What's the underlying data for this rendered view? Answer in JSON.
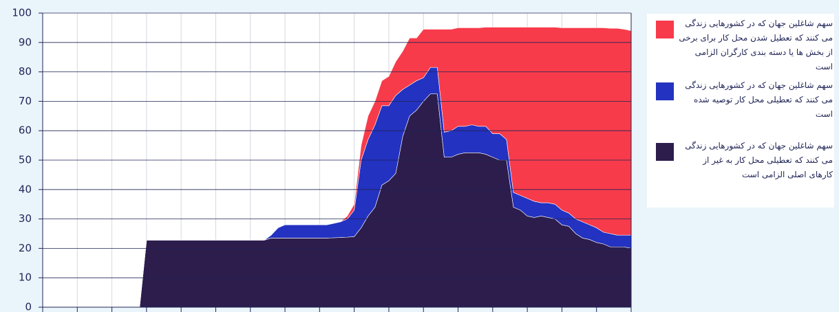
{
  "chart_data": {
    "type": "stacked-area",
    "categories": [
      null,
      null,
      null,
      null,
      null,
      null,
      null,
      null,
      null,
      null,
      null,
      null,
      null,
      null,
      null,
      null,
      null,
      null,
      null,
      null,
      null,
      null,
      null,
      null,
      null,
      null,
      null,
      null,
      null,
      null,
      null,
      null,
      null,
      null,
      null,
      null,
      null,
      null,
      null,
      null,
      null,
      null,
      null,
      null,
      null,
      null,
      null,
      null,
      null,
      null,
      null,
      null,
      null,
      null,
      null,
      null,
      null,
      null,
      null,
      null,
      null,
      null,
      null,
      null,
      null,
      null,
      null,
      null,
      null,
      null,
      null,
      null,
      null,
      null,
      null,
      null,
      null,
      null,
      null,
      null,
      null,
      null,
      null,
      null,
      null,
      null
    ],
    "series": [
      {
        "name": "سهم شاغلین جهان که در کشورهایی زندگی می کنند که تعطیل شدن محل کار برای برخی از بخش ها یا دسته بندی کارگران الزامی است",
        "color": "#f73b4a",
        "values": [
          0,
          0,
          0,
          0,
          0,
          0,
          0,
          0,
          0,
          0,
          0,
          0,
          0,
          0,
          0,
          0,
          0,
          0,
          0,
          0,
          0,
          0,
          0,
          0,
          0,
          0,
          0,
          0,
          0,
          0,
          0,
          0,
          0,
          0,
          0,
          0,
          0,
          0,
          0,
          0,
          0,
          0,
          0,
          0,
          1,
          2,
          5,
          8,
          8,
          8.5,
          10,
          11.5,
          13,
          16,
          14.5,
          16.5,
          13,
          13,
          35,
          34.5,
          33.5,
          33.5,
          33,
          33.5,
          33.7,
          36.2,
          36.2,
          38.2,
          56.2,
          57.2,
          58.2,
          59.2,
          59.7,
          59.7,
          60.2,
          62,
          63,
          65,
          66,
          67,
          68,
          69.5,
          69.8,
          70.3,
          70,
          69.5
        ]
      },
      {
        "name": "سهم شاغلین جهان که در کشورهایی زندگی می کنند که تعطیلی محل کار توصیه شده است",
        "color": "#2332c0",
        "values": [
          0,
          0,
          0,
          0,
          0,
          0,
          0,
          0,
          0,
          0,
          0,
          0,
          0,
          0,
          0,
          0,
          0,
          0,
          0,
          0,
          0,
          0,
          0,
          0,
          0,
          0,
          0,
          0,
          0,
          0,
          0,
          0,
          0,
          1,
          3.5,
          4.5,
          4.5,
          4.5,
          4.5,
          4.5,
          4.5,
          4.5,
          4.9,
          5.3,
          6.2,
          9,
          23,
          26,
          28,
          27,
          25.5,
          26.5,
          16,
          10.5,
          10,
          8,
          9,
          9,
          8.5,
          9,
          9.5,
          9,
          9.5,
          9,
          9.5,
          8,
          9,
          7,
          5,
          5,
          6,
          5.5,
          4.5,
          5,
          5,
          5,
          4.5,
          5,
          5.5,
          5,
          5,
          4,
          4.5,
          4,
          4,
          4.5
        ]
      },
      {
        "name": "سهم شاغلین جهان که در کشورهایی زندگی می کنند که تعطیلی محل کار به غیر از کارهای اصلی الزامی است",
        "color": "#2d1d4d",
        "values": [
          0,
          0,
          0,
          0,
          0,
          0,
          0,
          0,
          0,
          0,
          0,
          0,
          0,
          0,
          0,
          22.8,
          22.8,
          22.8,
          22.8,
          22.8,
          22.8,
          22.8,
          22.8,
          22.8,
          22.8,
          22.8,
          22.8,
          22.8,
          22.8,
          22.8,
          22.8,
          22.8,
          22.8,
          23.5,
          23.5,
          23.5,
          23.5,
          23.5,
          23.5,
          23.5,
          23.5,
          23.5,
          23.6,
          23.7,
          23.8,
          24,
          27,
          31,
          34,
          41.5,
          43,
          45.5,
          58,
          65,
          67,
          70,
          72.5,
          72.5,
          51,
          51,
          52,
          52.5,
          52.5,
          52.5,
          52,
          51,
          50,
          50,
          34,
          33,
          31,
          30.5,
          31,
          30.5,
          30,
          28,
          27.5,
          25,
          23.5,
          23,
          22,
          21.5,
          20.5,
          20.5,
          20.5,
          20
        ]
      }
    ],
    "ylim": [
      0,
      100
    ],
    "yticks": [
      0,
      10,
      20,
      30,
      40,
      50,
      60,
      70,
      80,
      90,
      100
    ],
    "grid": true
  }
}
